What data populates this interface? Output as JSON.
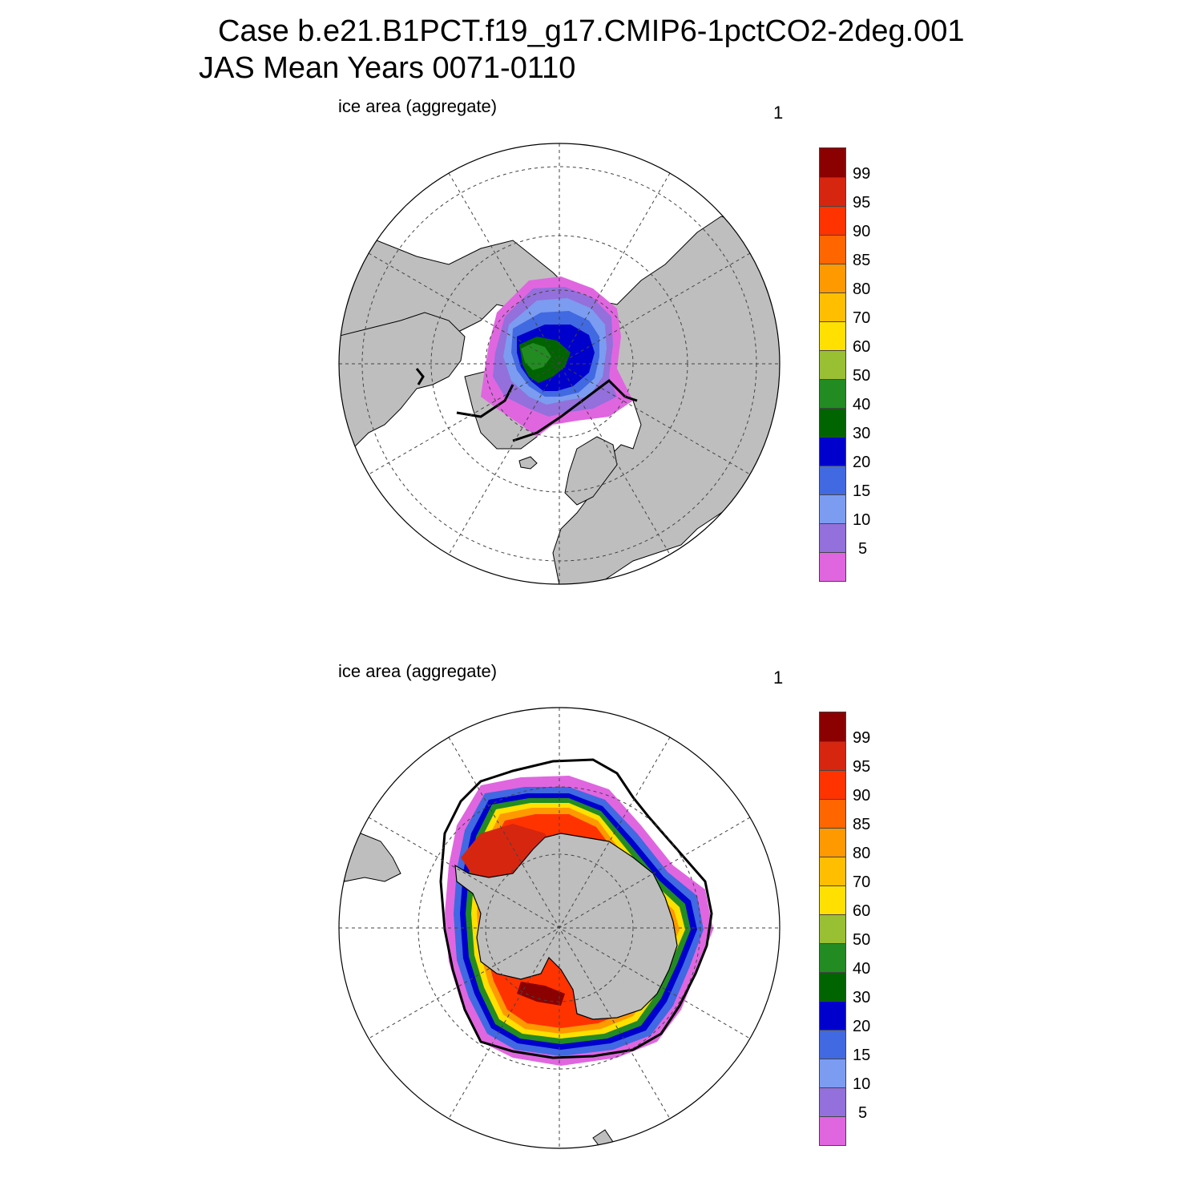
{
  "title": {
    "line1": "Case b.e21.B1PCT.f19_g17.CMIP6-1pctCO2-2deg.001",
    "line2": "JAS Mean   Years 0071-0110"
  },
  "panels": [
    {
      "id": "north",
      "label": "ice area  (aggregate)",
      "units": "1"
    },
    {
      "id": "south",
      "label": "ice area  (aggregate)",
      "units": "1"
    }
  ],
  "colorbar": {
    "colors_top_to_bottom": [
      "#8b0000",
      "#d62610",
      "#ff3300",
      "#ff6600",
      "#ff9900",
      "#ffbf00",
      "#ffe000",
      "#99bf33",
      "#228b22",
      "#006400",
      "#0000cd",
      "#4169e1",
      "#7b9cf0",
      "#9370db",
      "#e066e0"
    ],
    "labels_top_to_bottom": [
      "99",
      "95",
      "90",
      "85",
      "80",
      "70",
      "60",
      "50",
      "40",
      "30",
      "20",
      "15",
      "10",
      "5"
    ]
  },
  "map_colors": {
    "land": "#bebebe",
    "ocean": "#ffffff",
    "grid": "#444444",
    "edge": "#000000"
  }
}
